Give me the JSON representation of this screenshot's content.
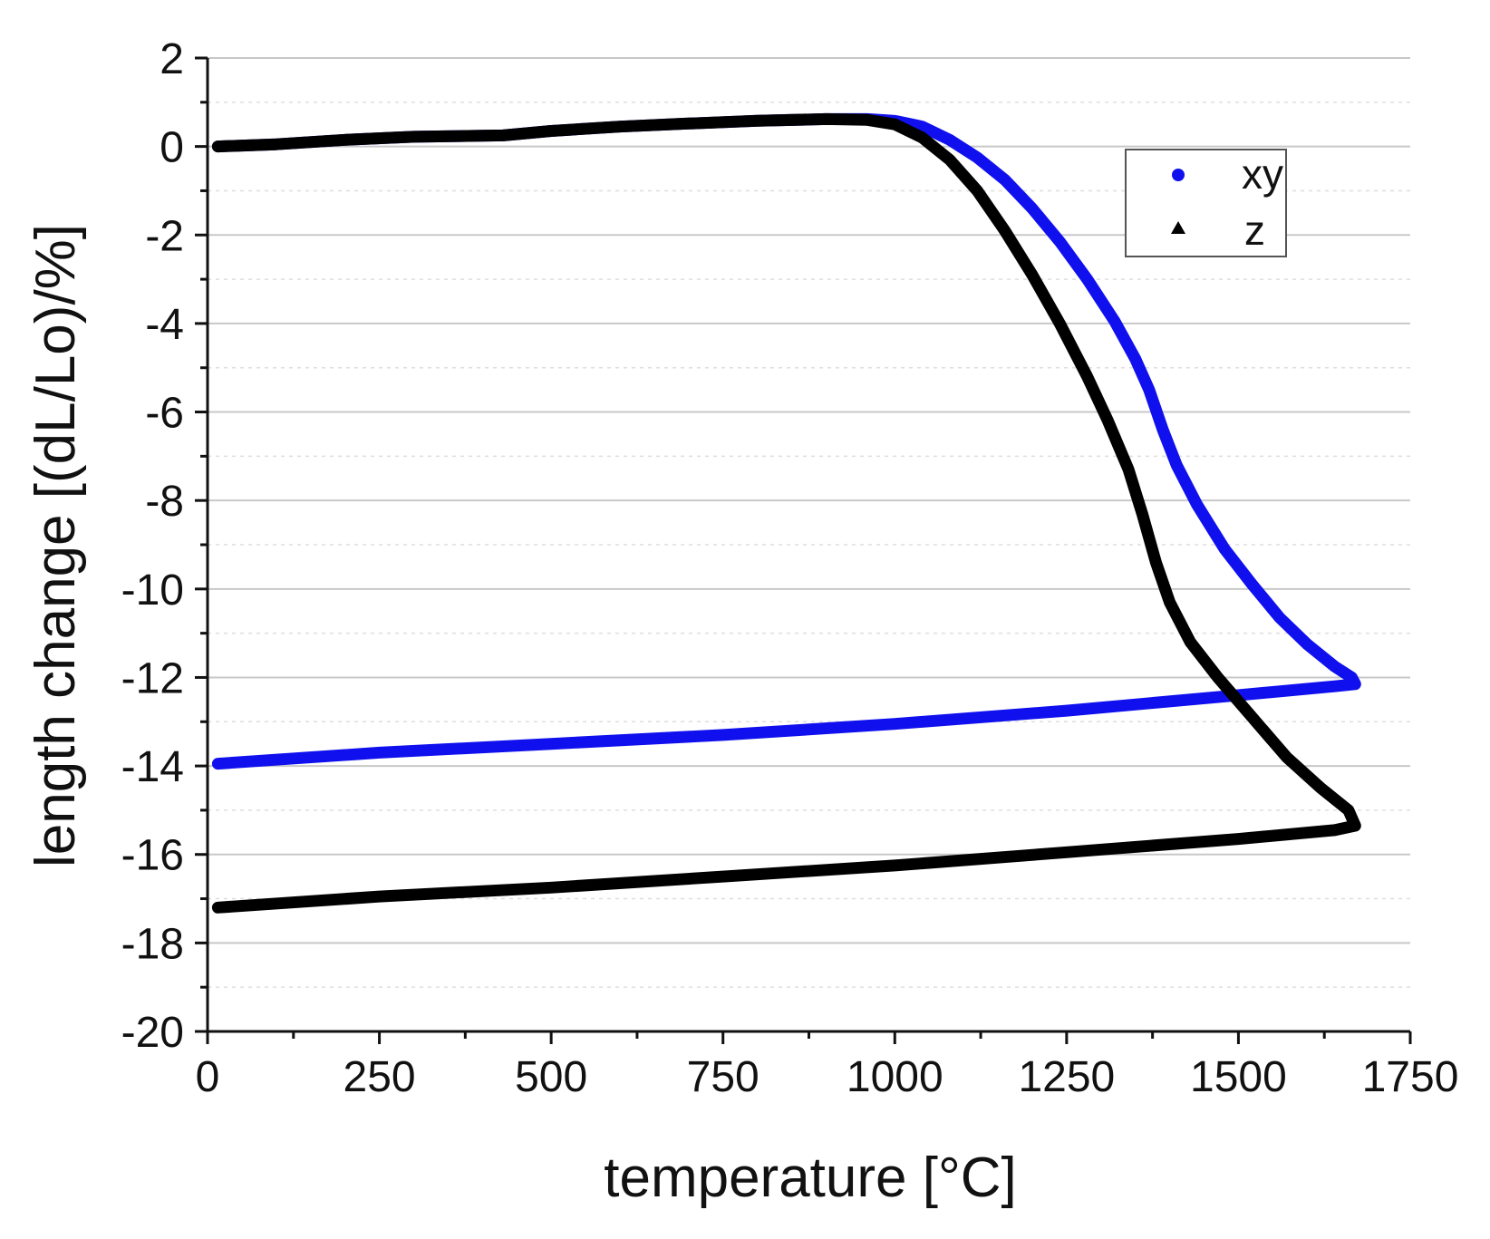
{
  "chart_data": {
    "type": "line",
    "title": "",
    "xlabel": "temperature [°C]",
    "ylabel": "length change [(dL/Lo)/%]",
    "xlim": [
      0,
      1750
    ],
    "ylim": [
      -20,
      2
    ],
    "xticks": [
      0,
      250,
      500,
      750,
      1000,
      1250,
      1500,
      1750
    ],
    "yticks": [
      2,
      0,
      -2,
      -4,
      -6,
      -8,
      -10,
      -12,
      -14,
      -16,
      -18,
      -20
    ],
    "xtick_labels": [
      "0",
      "250",
      "500",
      "750",
      "1000",
      "1250",
      "1500",
      "1750"
    ],
    "ytick_labels": [
      "2",
      "0",
      "-2",
      "-4",
      "-6",
      "-8",
      "-10",
      "-12",
      "-14",
      "-16",
      "-18",
      "-20"
    ],
    "grid": true,
    "legend_position": "top-right",
    "series": [
      {
        "name": "xy",
        "marker": "circle",
        "color": "#1010ee",
        "points": [
          [
            15,
            0.0
          ],
          [
            100,
            0.05
          ],
          [
            200,
            0.15
          ],
          [
            300,
            0.22
          ],
          [
            430,
            0.25
          ],
          [
            500,
            0.35
          ],
          [
            600,
            0.45
          ],
          [
            700,
            0.52
          ],
          [
            800,
            0.58
          ],
          [
            900,
            0.62
          ],
          [
            960,
            0.62
          ],
          [
            1000,
            0.58
          ],
          [
            1040,
            0.45
          ],
          [
            1080,
            0.15
          ],
          [
            1120,
            -0.25
          ],
          [
            1160,
            -0.75
          ],
          [
            1200,
            -1.4
          ],
          [
            1240,
            -2.15
          ],
          [
            1280,
            -3.0
          ],
          [
            1320,
            -3.95
          ],
          [
            1350,
            -4.8
          ],
          [
            1370,
            -5.5
          ],
          [
            1390,
            -6.4
          ],
          [
            1410,
            -7.2
          ],
          [
            1440,
            -8.1
          ],
          [
            1480,
            -9.1
          ],
          [
            1520,
            -9.9
          ],
          [
            1560,
            -10.65
          ],
          [
            1600,
            -11.25
          ],
          [
            1640,
            -11.75
          ],
          [
            1665,
            -12.0
          ],
          [
            1670,
            -12.15
          ],
          [
            1640,
            -12.2
          ],
          [
            1500,
            -12.4
          ],
          [
            1250,
            -12.75
          ],
          [
            1000,
            -13.05
          ],
          [
            750,
            -13.3
          ],
          [
            500,
            -13.5
          ],
          [
            250,
            -13.7
          ],
          [
            15,
            -13.95
          ]
        ]
      },
      {
        "name": "z",
        "marker": "triangle",
        "color": "#000000",
        "points": [
          [
            15,
            0.0
          ],
          [
            100,
            0.05
          ],
          [
            200,
            0.15
          ],
          [
            300,
            0.22
          ],
          [
            430,
            0.25
          ],
          [
            500,
            0.35
          ],
          [
            600,
            0.45
          ],
          [
            700,
            0.52
          ],
          [
            800,
            0.58
          ],
          [
            900,
            0.62
          ],
          [
            960,
            0.6
          ],
          [
            1000,
            0.5
          ],
          [
            1040,
            0.2
          ],
          [
            1080,
            -0.3
          ],
          [
            1120,
            -1.0
          ],
          [
            1160,
            -1.9
          ],
          [
            1200,
            -2.9
          ],
          [
            1240,
            -4.0
          ],
          [
            1280,
            -5.2
          ],
          [
            1310,
            -6.2
          ],
          [
            1340,
            -7.3
          ],
          [
            1360,
            -8.3
          ],
          [
            1380,
            -9.4
          ],
          [
            1400,
            -10.3
          ],
          [
            1430,
            -11.2
          ],
          [
            1470,
            -12.0
          ],
          [
            1520,
            -12.9
          ],
          [
            1570,
            -13.8
          ],
          [
            1620,
            -14.5
          ],
          [
            1660,
            -15.0
          ],
          [
            1670,
            -15.35
          ],
          [
            1640,
            -15.45
          ],
          [
            1500,
            -15.65
          ],
          [
            1250,
            -15.95
          ],
          [
            1000,
            -16.25
          ],
          [
            750,
            -16.5
          ],
          [
            500,
            -16.75
          ],
          [
            250,
            -16.95
          ],
          [
            15,
            -17.2
          ]
        ]
      }
    ]
  }
}
